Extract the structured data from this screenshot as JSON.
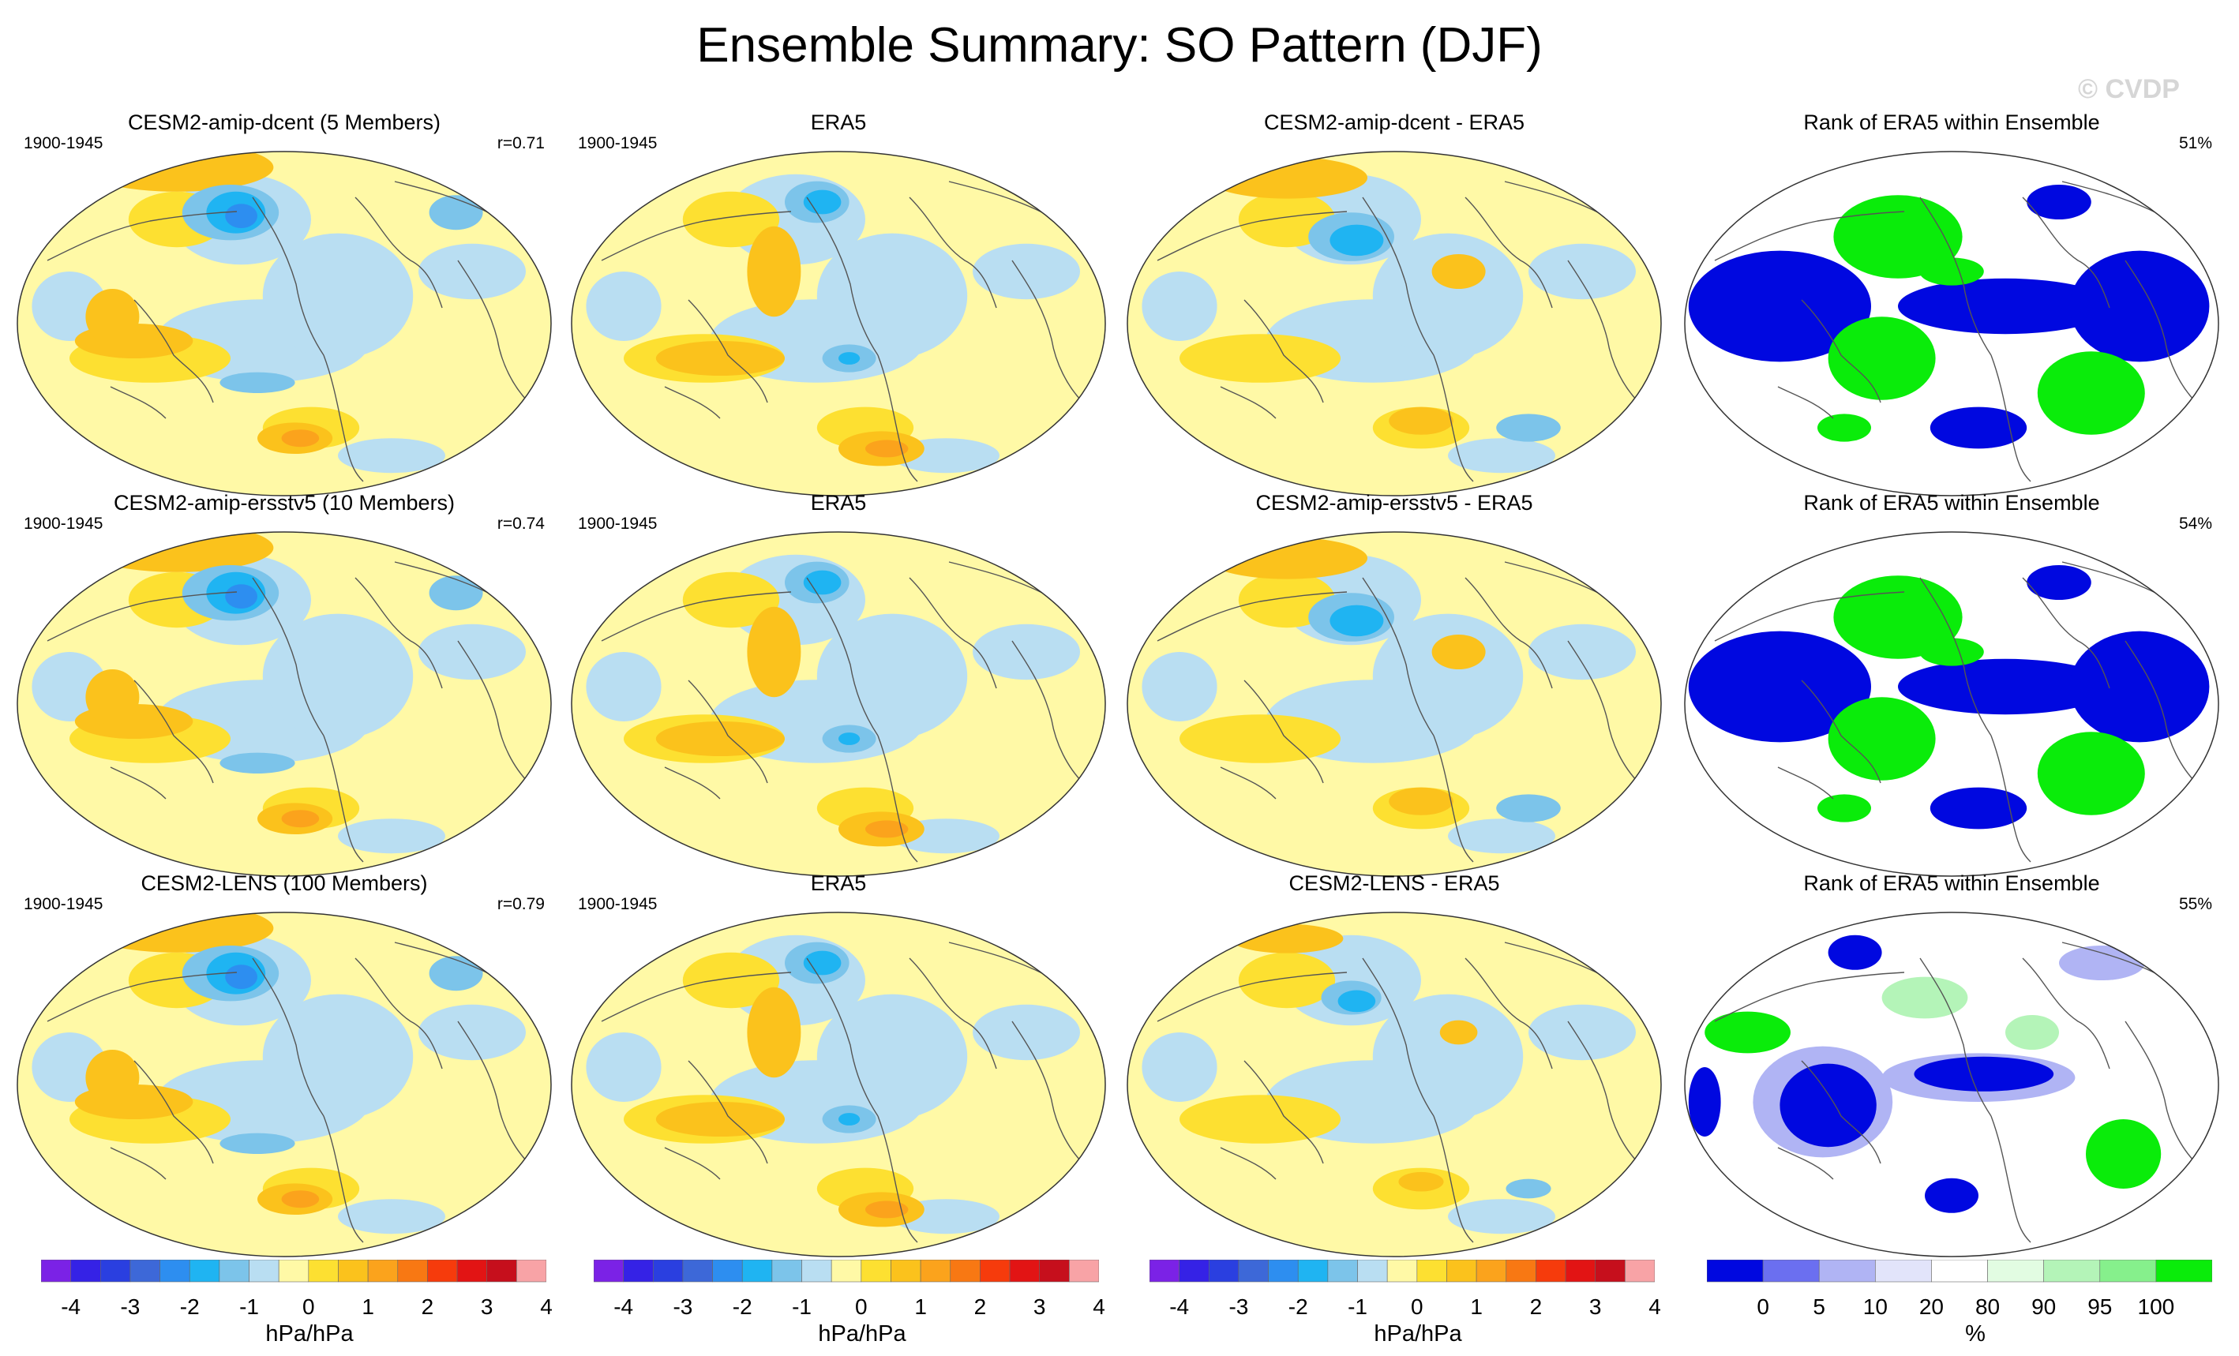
{
  "title": "Ensemble Summary: SO Pattern (DJF)",
  "watermark": "© CVDP",
  "colors": {
    "diverging": [
      "#7b22e6",
      "#3522e6",
      "#2a3fe0",
      "#3d68d8",
      "#2d8ef0",
      "#1fb4f2",
      "#7cc4ea",
      "#b9def2",
      "#fff9a6",
      "#fde031",
      "#fbc21c",
      "#fba31c",
      "#f87813",
      "#f63b0c",
      "#e21414",
      "#c60f1c",
      "#f8a3a6"
    ],
    "rank": [
      "#0008e0",
      "#6b6ff0",
      "#b0b4f4",
      "#e2e4fa",
      "#ffffff",
      "#e2fce2",
      "#b4f4b8",
      "#86f08c",
      "#0aec0a"
    ],
    "coast": "#555555",
    "background": "#ffffff"
  },
  "rows": [
    {
      "model": {
        "title": "CESM2-amip-dcent (5 Members)",
        "period": "1900-1945",
        "corr": "r=0.71"
      },
      "obs": {
        "title": "ERA5",
        "period": "1900-1945"
      },
      "diff": {
        "title": "CESM2-amip-dcent - ERA5"
      },
      "rank": {
        "title": "Rank of ERA5 within Ensemble",
        "pct": "51%"
      }
    },
    {
      "model": {
        "title": "CESM2-amip-ersstv5 (10 Members)",
        "period": "1900-1945",
        "corr": "r=0.74"
      },
      "obs": {
        "title": "ERA5",
        "period": "1900-1945"
      },
      "diff": {
        "title": "CESM2-amip-ersstv5 - ERA5"
      },
      "rank": {
        "title": "Rank of ERA5 within Ensemble",
        "pct": "54%"
      }
    },
    {
      "model": {
        "title": "CESM2-LENS (100 Members)",
        "period": "1900-1945",
        "corr": "r=0.79"
      },
      "obs": {
        "title": "ERA5",
        "period": "1900-1945"
      },
      "diff": {
        "title": "CESM2-LENS - ERA5"
      },
      "rank": {
        "title": "Rank of ERA5 within Ensemble",
        "pct": "55%"
      }
    }
  ],
  "colorbars": [
    {
      "ticks": [
        "-4",
        "-3",
        "-2",
        "-1",
        "0",
        "1",
        "2",
        "3",
        "4"
      ],
      "unit": "hPa/hPa"
    },
    {
      "ticks": [
        "-4",
        "-3",
        "-2",
        "-1",
        "0",
        "1",
        "2",
        "3",
        "4"
      ],
      "unit": "hPa/hPa"
    },
    {
      "ticks": [
        "-4",
        "-3",
        "-2",
        "-1",
        "0",
        "1",
        "2",
        "3",
        "4"
      ],
      "unit": "hPa/hPa"
    },
    {
      "ticks": [
        "0",
        "5",
        "10",
        "20",
        "80",
        "90",
        "95",
        "100"
      ],
      "unit": "%"
    }
  ],
  "chart_data": {
    "type": "heatmap",
    "title": "Ensemble Summary: SO Pattern (DJF)",
    "projection": "Robinson (Pacific-centered)",
    "diverging_levels": [
      -4,
      -3.5,
      -3,
      -2.5,
      -2,
      -1.5,
      -1,
      -0.5,
      0,
      0.5,
      1,
      1.5,
      2,
      2.5,
      3,
      3.5,
      4
    ],
    "rank_levels": [
      0,
      5,
      10,
      20,
      80,
      90,
      95,
      100
    ],
    "units": [
      "hPa/hPa",
      "%"
    ],
    "panels": [
      "CESM2-amip-dcent (5 Members)",
      "ERA5",
      "CESM2-amip-dcent - ERA5",
      "Rank of ERA5 within Ensemble",
      "CESM2-amip-ersstv5 (10 Members)",
      "ERA5",
      "CESM2-amip-ersstv5 - ERA5",
      "Rank of ERA5 within Ensemble",
      "CESM2-LENS (100 Members)",
      "ERA5",
      "CESM2-LENS - ERA5",
      "Rank of ERA5 within Ensemble"
    ],
    "pattern_correlations": [
      0.71,
      0.74,
      0.79
    ],
    "rank_percent": [
      51,
      54,
      55
    ]
  }
}
